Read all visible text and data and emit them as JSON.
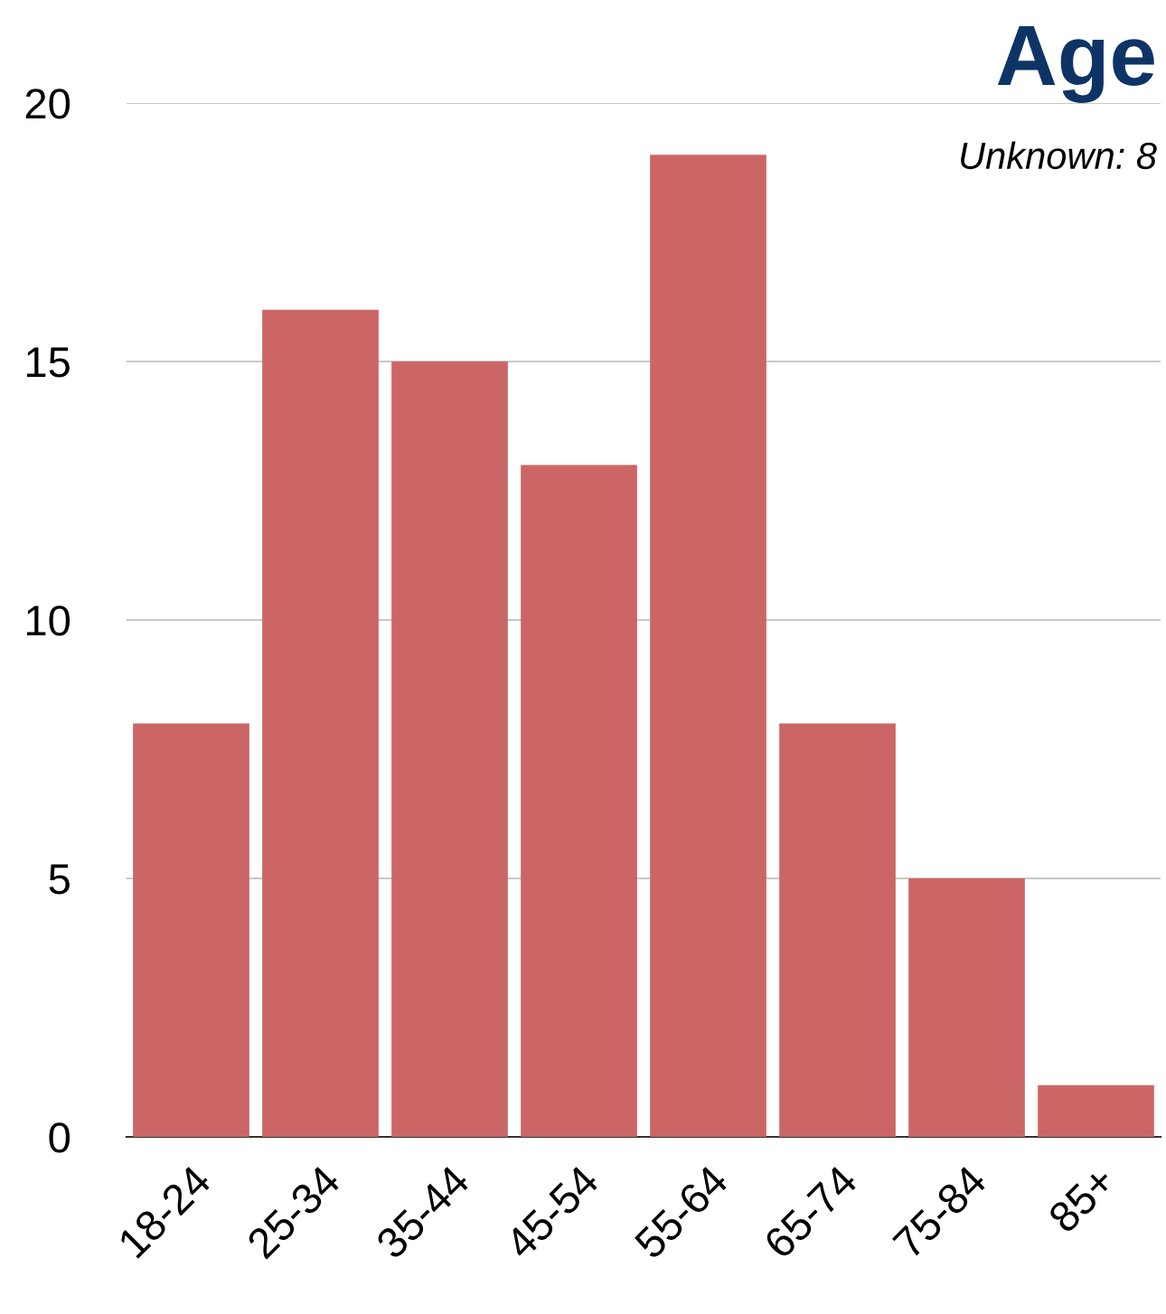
{
  "chart_data": {
    "type": "bar",
    "title": "Age",
    "subtitle": "Unknown: 8",
    "categories": [
      "18-24",
      "25-34",
      "35-44",
      "45-54",
      "55-64",
      "65-74",
      "75-84",
      "85+"
    ],
    "values": [
      8,
      16,
      15,
      13,
      19,
      8,
      5,
      1
    ],
    "color": "#cc6666",
    "ylim": [
      0,
      20
    ],
    "yticks": [
      0,
      5,
      10,
      15,
      20
    ],
    "grid": "y"
  }
}
